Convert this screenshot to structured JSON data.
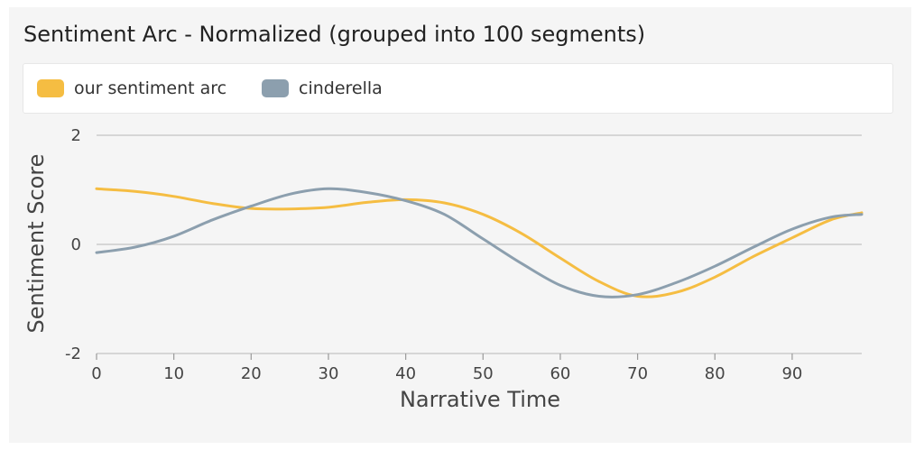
{
  "chart_data": {
    "type": "line",
    "title": "Sentiment Arc - Normalized (grouped into 100 segments)",
    "xlabel": "Narrative Time",
    "ylabel": "Sentiment Score",
    "xlim": [
      0,
      99
    ],
    "ylim": [
      -2,
      2
    ],
    "x_ticks": [
      0,
      10,
      20,
      30,
      40,
      50,
      60,
      70,
      80,
      90
    ],
    "y_ticks": [
      2,
      0,
      -2
    ],
    "grid": "horizontal",
    "legend_position": "top",
    "series": [
      {
        "name": "our sentiment arc",
        "color": "#f5bd42",
        "x": [
          0,
          5,
          10,
          15,
          20,
          25,
          30,
          35,
          40,
          45,
          50,
          55,
          60,
          65,
          70,
          75,
          80,
          85,
          90,
          95,
          99
        ],
        "y": [
          1.02,
          0.97,
          0.88,
          0.75,
          0.66,
          0.65,
          0.68,
          0.77,
          0.82,
          0.76,
          0.55,
          0.2,
          -0.25,
          -0.68,
          -0.95,
          -0.88,
          -0.6,
          -0.22,
          0.12,
          0.45,
          0.58
        ]
      },
      {
        "name": "cinderella",
        "color": "#8c9fae",
        "x": [
          0,
          5,
          10,
          15,
          20,
          25,
          30,
          35,
          40,
          45,
          50,
          55,
          60,
          65,
          70,
          75,
          80,
          85,
          90,
          95,
          99
        ],
        "y": [
          -0.15,
          -0.05,
          0.15,
          0.45,
          0.7,
          0.92,
          1.02,
          0.95,
          0.8,
          0.55,
          0.1,
          -0.35,
          -0.75,
          -0.95,
          -0.92,
          -0.7,
          -0.4,
          -0.05,
          0.28,
          0.5,
          0.55
        ]
      }
    ]
  }
}
